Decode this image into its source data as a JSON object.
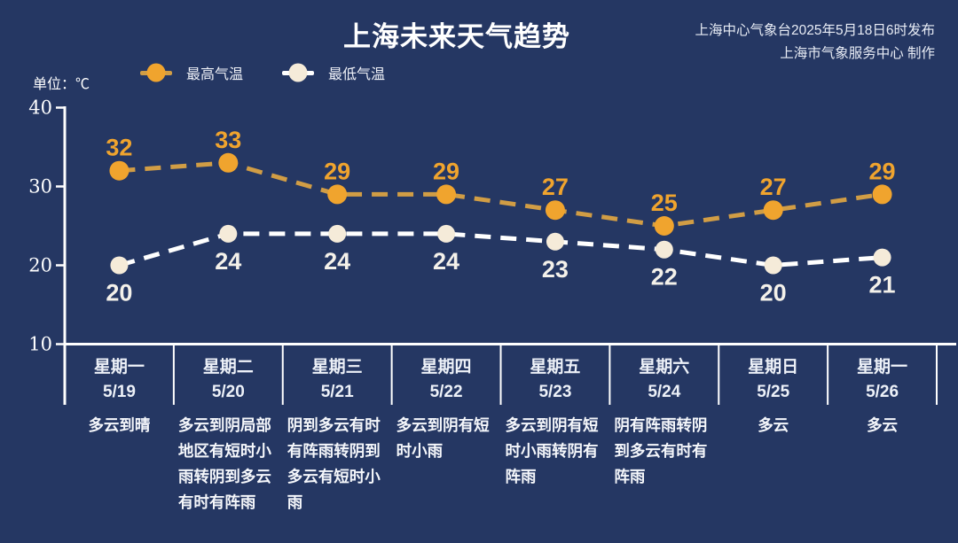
{
  "header": {
    "title": "上海未来天气趋势",
    "publisher_line1": "上海中心气象台2025年5月18日6时发布",
    "publisher_line2": "上海市气象服务中心 制作"
  },
  "unit_label": "单位：℃",
  "legend": {
    "high_label": "最高气温",
    "low_label": "最低气温"
  },
  "colors": {
    "background": "#253763",
    "high_point": "#f0a42e",
    "high_line": "#d19d45",
    "high_value_text": "#f0a42e",
    "low_point": "#f5ebd9",
    "low_line": "#ffffff",
    "low_value_text": "#f4f1ea",
    "axis": "#ffffff",
    "tick_text": "#ffffff"
  },
  "chart_data": {
    "type": "line",
    "title": "上海未来天气趋势",
    "unit": "℃",
    "xlabel": "",
    "ylabel": "单位：℃",
    "y_axis": {
      "min": 10,
      "max": 40,
      "ticks": [
        40,
        30,
        20,
        10
      ]
    },
    "grid": false,
    "legend_position": "top-left",
    "line_style": "dashed",
    "categories": [
      "5/19",
      "5/20",
      "5/21",
      "5/22",
      "5/23",
      "5/24",
      "5/25",
      "5/26"
    ],
    "days": [
      {
        "weekday": "星期一",
        "date": "5/19",
        "weather": "多云到晴"
      },
      {
        "weekday": "星期二",
        "date": "5/20",
        "weather": "多云到阴局部地区有短时小雨转阴到多云有时有阵雨"
      },
      {
        "weekday": "星期三",
        "date": "5/21",
        "weather": "阴到多云有时有阵雨转阴到多云有短时小雨"
      },
      {
        "weekday": "星期四",
        "date": "5/22",
        "weather": "多云到阴有短时小雨"
      },
      {
        "weekday": "星期五",
        "date": "5/23",
        "weather": "多云到阴有短时小雨转阴有阵雨"
      },
      {
        "weekday": "星期六",
        "date": "5/24",
        "weather": "阴有阵雨转阴到多云有时有阵雨"
      },
      {
        "weekday": "星期日",
        "date": "5/25",
        "weather": "多云"
      },
      {
        "weekday": "星期一",
        "date": "5/26",
        "weather": "多云"
      }
    ],
    "series": [
      {
        "name": "最高气温",
        "values": [
          32,
          33,
          29,
          29,
          27,
          25,
          27,
          29
        ]
      },
      {
        "name": "最低气温",
        "values": [
          20,
          24,
          24,
          24,
          23,
          22,
          20,
          21
        ]
      }
    ]
  }
}
